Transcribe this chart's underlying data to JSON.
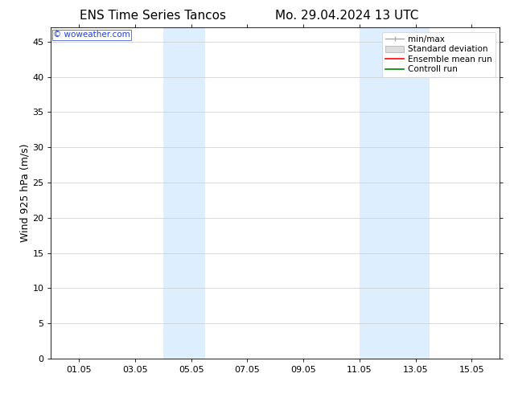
{
  "title_left": "ENS Time Series Tancos",
  "title_right": "Mo. 29.04.2024 13 UTC",
  "ylabel": "Wind 925 hPa (m/s)",
  "ylim": [
    0,
    47
  ],
  "yticks": [
    0,
    5,
    10,
    15,
    20,
    25,
    30,
    35,
    40,
    45
  ],
  "xlim": [
    0.0,
    16.0
  ],
  "xtick_labels": [
    "01.05",
    "03.05",
    "05.05",
    "07.05",
    "09.05",
    "11.05",
    "13.05",
    "15.05"
  ],
  "xtick_positions": [
    1.0,
    3.0,
    5.0,
    7.0,
    9.0,
    11.0,
    13.0,
    15.0
  ],
  "shaded_bands": [
    {
      "x_start": 4.0,
      "x_end": 5.5
    },
    {
      "x_start": 11.0,
      "x_end": 13.5
    }
  ],
  "shade_color": "#ddeeff",
  "background_color": "#ffffff",
  "grid_color": "#cccccc",
  "watermark_text": "© woweather.com",
  "watermark_color": "#2244cc",
  "legend_items": [
    {
      "label": "min/max",
      "color": "#aaaaaa"
    },
    {
      "label": "Standard deviation",
      "color": "#cccccc"
    },
    {
      "label": "Ensemble mean run",
      "color": "#ff0000"
    },
    {
      "label": "Controll run",
      "color": "#008000"
    }
  ],
  "title_fontsize": 11,
  "axis_label_fontsize": 9,
  "tick_fontsize": 8,
  "legend_fontsize": 7.5,
  "watermark_fontsize": 7.5
}
